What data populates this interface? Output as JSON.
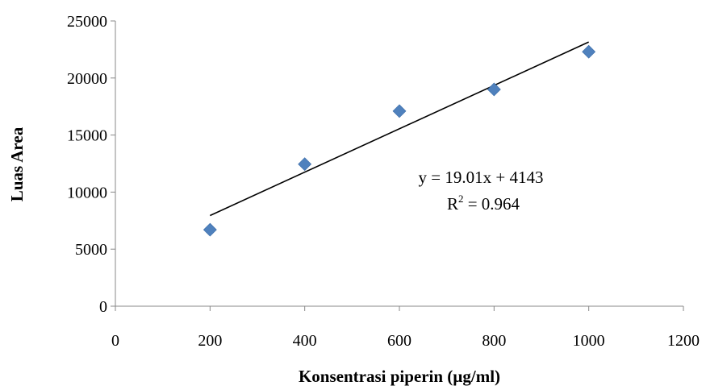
{
  "chart_data": {
    "type": "scatter",
    "xlabel": "Konsentrasi piperin (µg/ml)",
    "ylabel": "Luas Area",
    "xlim": [
      0,
      1200
    ],
    "ylim": [
      0,
      25000
    ],
    "x_ticks": [
      0,
      200,
      400,
      600,
      800,
      1000,
      1200
    ],
    "y_ticks": [
      0,
      5000,
      10000,
      15000,
      20000,
      25000
    ],
    "grid": false,
    "series": [
      {
        "color": "#4F81BD",
        "marker": "diamond",
        "points": [
          {
            "x": 200,
            "y": 6700
          },
          {
            "x": 400,
            "y": 12450
          },
          {
            "x": 600,
            "y": 17100
          },
          {
            "x": 800,
            "y": 19000
          },
          {
            "x": 1000,
            "y": 22300
          }
        ]
      }
    ],
    "trendline": {
      "slope": 19.01,
      "intercept": 4143,
      "x_range": [
        200,
        1000
      ],
      "color": "#000000"
    },
    "annotations": {
      "equation": "y = 19.01x + 4143",
      "r2_prefix": "R",
      "r2_sup": "2",
      "r2_suffix": " = 0.964"
    }
  }
}
